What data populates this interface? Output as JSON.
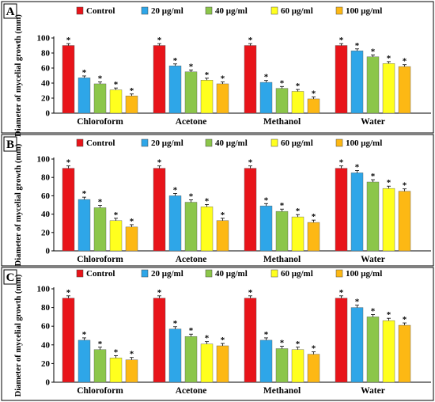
{
  "chart_data": [
    {
      "type": "bar",
      "panel_label": "A",
      "ylabel": "Diameter of mycelial growth (mm)",
      "ylim": [
        0,
        100
      ],
      "yticks": [
        0,
        20,
        40,
        60,
        80,
        100
      ],
      "legend_position": "top",
      "categories": [
        "Chloroform",
        "Acetone",
        "Methanol",
        "Water"
      ],
      "series": [
        {
          "name": "Control",
          "color": "#e8141a",
          "values": [
            90,
            90,
            90,
            90
          ]
        },
        {
          "name": "20 μg/ml",
          "color": "#2ea6e8",
          "values": [
            47,
            63,
            41,
            83
          ]
        },
        {
          "name": "40 μg/ml",
          "color": "#8cc64a",
          "values": [
            39,
            55,
            33,
            75
          ]
        },
        {
          "name": "60 μg/ml",
          "color": "#ffff1e",
          "values": [
            31,
            44,
            29,
            66
          ]
        },
        {
          "name": "100 μg/ml",
          "color": "#fdb814",
          "values": [
            23,
            39,
            19,
            62
          ]
        }
      ],
      "annotation": "*"
    },
    {
      "type": "bar",
      "panel_label": "B",
      "ylabel": "Diameter of mycelial growth (mm)",
      "ylim": [
        0,
        100
      ],
      "yticks": [
        0,
        20,
        40,
        60,
        80,
        100
      ],
      "legend_position": "top",
      "categories": [
        "Chloroform",
        "Acetone",
        "Methanol",
        "Water"
      ],
      "series": [
        {
          "name": "Control",
          "color": "#e8141a",
          "values": [
            90,
            90,
            90,
            90
          ]
        },
        {
          "name": "20 μg/ml",
          "color": "#2ea6e8",
          "values": [
            56,
            60,
            49,
            85
          ]
        },
        {
          "name": "40 μg/ml",
          "color": "#8cc64a",
          "values": [
            47,
            53,
            43,
            75
          ]
        },
        {
          "name": "60 μg/ml",
          "color": "#ffff1e",
          "values": [
            33,
            48,
            37,
            68
          ]
        },
        {
          "name": "100 μg/ml",
          "color": "#fdb814",
          "values": [
            26,
            33,
            31,
            65
          ]
        }
      ],
      "annotation": "*"
    },
    {
      "type": "bar",
      "panel_label": "C",
      "ylabel": "Diameter of mycelial growth (mm)",
      "ylim": [
        0,
        100
      ],
      "yticks": [
        0,
        20,
        40,
        60,
        80,
        100
      ],
      "legend_position": "top",
      "categories": [
        "Chloroform",
        "Acetone",
        "Methanol",
        "Water"
      ],
      "series": [
        {
          "name": "Control",
          "color": "#e8141a",
          "values": [
            90,
            90,
            90,
            90
          ]
        },
        {
          "name": "20 μg/ml",
          "color": "#2ea6e8",
          "values": [
            45,
            57,
            45,
            80
          ]
        },
        {
          "name": "40 μg/ml",
          "color": "#8cc64a",
          "values": [
            35,
            49,
            36,
            70
          ]
        },
        {
          "name": "60 μg/ml",
          "color": "#ffff1e",
          "values": [
            26,
            41,
            35,
            66
          ]
        },
        {
          "name": "100 μg/ml",
          "color": "#fdb814",
          "values": [
            24,
            39,
            30,
            61
          ]
        }
      ],
      "annotation": "*"
    }
  ]
}
